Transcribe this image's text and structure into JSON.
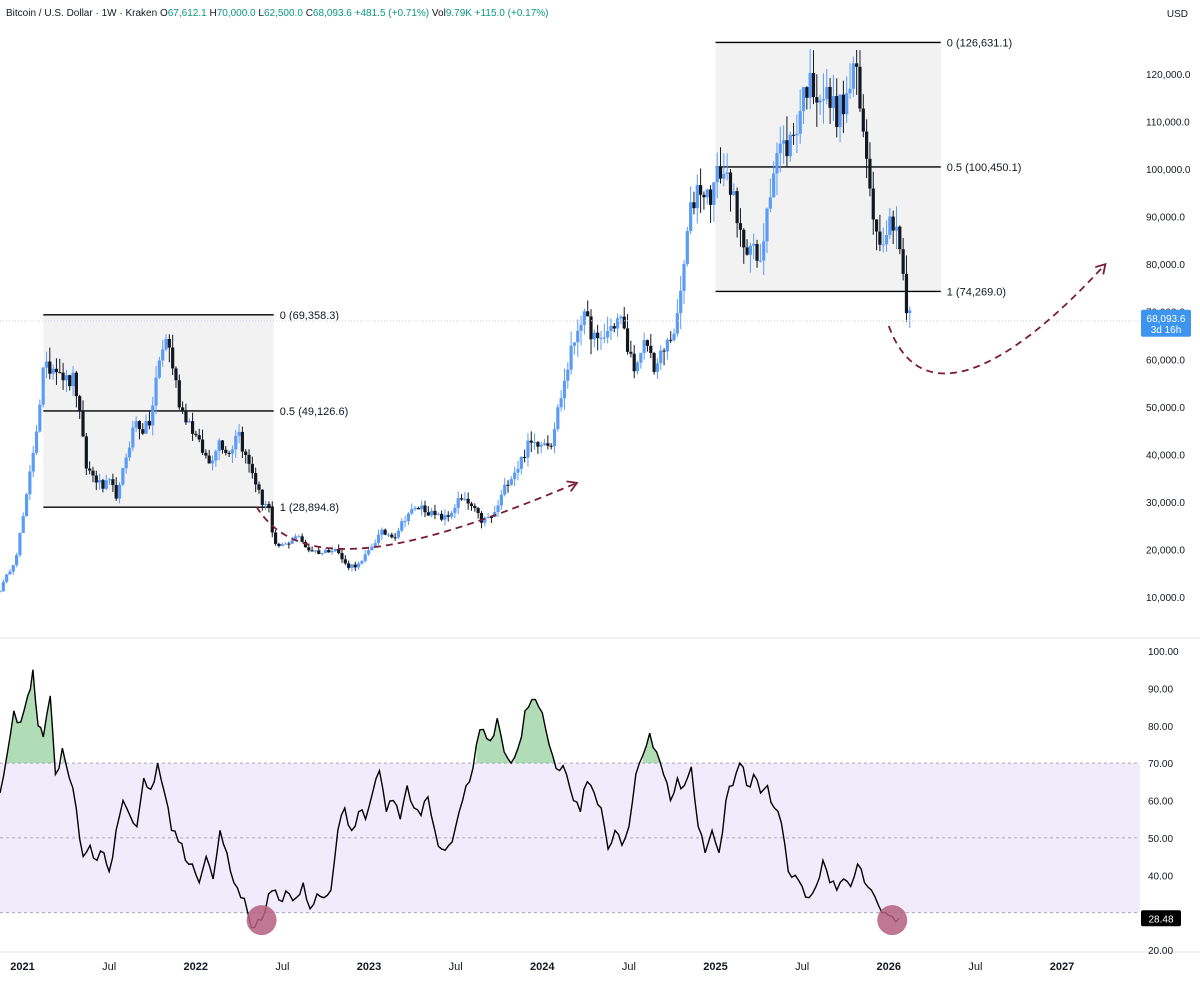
{
  "header": {
    "symbol": "Bitcoin / U.S. Dollar",
    "interval": "1W",
    "exchange": "Kraken",
    "open_label": "O",
    "open": "67,612.1",
    "high_label": "H",
    "high": "70,000.0",
    "low_label": "L",
    "low": "62,500.0",
    "close_label": "C",
    "close": "68,093.6",
    "change": "+481.5 (+0.71%)",
    "volume_label": "Vol",
    "volume": "9.79K",
    "volume_change": "+115.0 (+0.17%)",
    "currency": "USD"
  },
  "price_badge": {
    "price": "68,093.6",
    "countdown": "3d 16h"
  },
  "rsi_badge": "28.48",
  "colors": {
    "up": "#5b9cf6",
    "down": "#131722",
    "fib_box": "#f2f2f2",
    "arrow": "#7b1c37",
    "rsi_band": "#f1ecfb",
    "rsi_line": "#000000",
    "rsi_over": "#6fc179",
    "rsi_marker": "#b5607f",
    "badge": "#3d95ef"
  },
  "chart_data": [
    {
      "type": "candlestick",
      "title": "",
      "y_axis_ticks": [
        "10,000.0",
        "20,000.0",
        "30,000.0",
        "40,000.0",
        "50,000.0",
        "60,000.0",
        "70,000.0",
        "80,000.0",
        "90,000.0",
        "100,000.0",
        "110,000.0",
        "120,000.0"
      ],
      "ylim": [
        0,
        130000
      ],
      "x_axis_ticks": [
        "2021",
        "Jul",
        "2022",
        "Jul",
        "2023",
        "Jul",
        "2024",
        "Jul",
        "2025",
        "Jul",
        "2026",
        "Jul",
        "2027"
      ],
      "xlim": [
        2020.87,
        2027.45
      ],
      "anchors": [
        [
          2020.87,
          11500
        ],
        [
          2020.96,
          18200
        ],
        [
          2021.02,
          30000
        ],
        [
          2021.09,
          48000
        ],
        [
          2021.12,
          57500
        ],
        [
          2021.2,
          59000
        ],
        [
          2021.26,
          55000
        ],
        [
          2021.3,
          56000
        ],
        [
          2021.37,
          37000
        ],
        [
          2021.42,
          35000
        ],
        [
          2021.46,
          33000
        ],
        [
          2021.5,
          34000
        ],
        [
          2021.55,
          31000
        ],
        [
          2021.6,
          40000
        ],
        [
          2021.65,
          47000
        ],
        [
          2021.7,
          45000
        ],
        [
          2021.74,
          47000
        ],
        [
          2021.78,
          58000
        ],
        [
          2021.83,
          65000
        ],
        [
          2021.86,
          60000
        ],
        [
          2021.91,
          50000
        ],
        [
          2021.96,
          47000
        ],
        [
          2022.02,
          42000
        ],
        [
          2022.08,
          38000
        ],
        [
          2022.13,
          43000
        ],
        [
          2022.2,
          40000
        ],
        [
          2022.24,
          46000
        ],
        [
          2022.28,
          40000
        ],
        [
          2022.33,
          36000
        ],
        [
          2022.38,
          30000
        ],
        [
          2022.42,
          29500
        ],
        [
          2022.45,
          20500
        ],
        [
          2022.52,
          21000
        ],
        [
          2022.58,
          23000
        ],
        [
          2022.65,
          20000
        ],
        [
          2022.73,
          19300
        ],
        [
          2022.8,
          20500
        ],
        [
          2022.87,
          16500
        ],
        [
          2022.95,
          16800
        ],
        [
          2023.02,
          21000
        ],
        [
          2023.07,
          23500
        ],
        [
          2023.15,
          23000
        ],
        [
          2023.22,
          27500
        ],
        [
          2023.3,
          29000
        ],
        [
          2023.38,
          27000
        ],
        [
          2023.45,
          26500
        ],
        [
          2023.52,
          30500
        ],
        [
          2023.58,
          29500
        ],
        [
          2023.65,
          26000
        ],
        [
          2023.72,
          27000
        ],
        [
          2023.8,
          34500
        ],
        [
          2023.86,
          37500
        ],
        [
          2023.92,
          42000
        ],
        [
          2024.0,
          43000
        ],
        [
          2024.05,
          42500
        ],
        [
          2024.1,
          51000
        ],
        [
          2024.17,
          62000
        ],
        [
          2024.22,
          69000
        ],
        [
          2024.27,
          67000
        ],
        [
          2024.32,
          63000
        ],
        [
          2024.38,
          66000
        ],
        [
          2024.45,
          69000
        ],
        [
          2024.5,
          61000
        ],
        [
          2024.55,
          58000
        ],
        [
          2024.6,
          64000
        ],
        [
          2024.65,
          58000
        ],
        [
          2024.72,
          63000
        ],
        [
          2024.78,
          68000
        ],
        [
          2024.85,
          90000
        ],
        [
          2024.9,
          97000
        ],
        [
          2024.96,
          94000
        ],
        [
          2025.03,
          100000
        ],
        [
          2025.09,
          97000
        ],
        [
          2025.13,
          86000
        ],
        [
          2025.2,
          84000
        ],
        [
          2025.26,
          79000
        ],
        [
          2025.3,
          94000
        ],
        [
          2025.36,
          104000
        ],
        [
          2025.42,
          105000
        ],
        [
          2025.46,
          108000
        ],
        [
          2025.52,
          118000
        ],
        [
          2025.58,
          117000
        ],
        [
          2025.64,
          115000
        ],
        [
          2025.7,
          112000
        ],
        [
          2025.76,
          114000
        ],
        [
          2025.8,
          123000
        ],
        [
          2025.84,
          110000
        ],
        [
          2025.88,
          101000
        ],
        [
          2025.93,
          86000
        ],
        [
          2025.98,
          87000
        ],
        [
          2026.02,
          90000
        ],
        [
          2026.05,
          88000
        ],
        [
          2026.08,
          78000
        ],
        [
          2026.1,
          70000
        ],
        [
          2026.12,
          69000
        ],
        [
          2026.14,
          68000
        ]
      ],
      "fib_levels": [
        {
          "from": 2021.12,
          "to": 2022.45,
          "labels": [
            {
              "ratio": "0",
              "price": 69358.3,
              "text": "0 (69,358.3)"
            },
            {
              "ratio": "0.5",
              "price": 49126.6,
              "text": "0.5 (49,126.6)"
            },
            {
              "ratio": "1",
              "price": 28894.8,
              "text": "1 (28,894.8)"
            }
          ]
        },
        {
          "from": 2025.0,
          "to": 2026.3,
          "labels": [
            {
              "ratio": "0",
              "price": 126631.1,
              "text": "0 (126,631.1)"
            },
            {
              "ratio": "0.5",
              "price": 100450.1,
              "text": "0.5 (100,450.1)"
            },
            {
              "ratio": "1",
              "price": 74269.0,
              "text": "1 (74,269.0)"
            }
          ]
        }
      ],
      "projection_arrows": [
        [
          [
            2022.35,
            29000
          ],
          [
            2022.62,
            13000
          ],
          [
            2023.35,
            21000
          ],
          [
            2024.2,
            34000
          ]
        ],
        [
          [
            2026.0,
            67000
          ],
          [
            2026.2,
            47000
          ],
          [
            2026.75,
            60000
          ],
          [
            2027.25,
            80000
          ]
        ]
      ]
    },
    {
      "type": "line",
      "title": "",
      "y_axis_ticks": [
        "20.00",
        "30.00",
        "40.00",
        "50.00",
        "60.00",
        "70.00",
        "80.00",
        "90.00",
        "100.00"
      ],
      "ylim": [
        20,
        100
      ],
      "band": [
        30,
        70
      ],
      "midline": 50,
      "rsi": [
        [
          2020.87,
          62
        ],
        [
          2020.91,
          72
        ],
        [
          2020.95,
          84
        ],
        [
          2020.99,
          81
        ],
        [
          2021.03,
          88
        ],
        [
          2021.06,
          95
        ],
        [
          2021.09,
          80
        ],
        [
          2021.12,
          77
        ],
        [
          2021.16,
          88
        ],
        [
          2021.19,
          67
        ],
        [
          2021.23,
          74
        ],
        [
          2021.27,
          66
        ],
        [
          2021.31,
          58
        ],
        [
          2021.35,
          45
        ],
        [
          2021.39,
          48
        ],
        [
          2021.43,
          44
        ],
        [
          2021.47,
          46
        ],
        [
          2021.5,
          41
        ],
        [
          2021.54,
          52
        ],
        [
          2021.58,
          60
        ],
        [
          2021.62,
          56
        ],
        [
          2021.66,
          53
        ],
        [
          2021.7,
          66
        ],
        [
          2021.74,
          63
        ],
        [
          2021.78,
          70
        ],
        [
          2021.82,
          62
        ],
        [
          2021.86,
          52
        ],
        [
          2021.9,
          49
        ],
        [
          2021.94,
          44
        ],
        [
          2021.98,
          43
        ],
        [
          2022.02,
          38
        ],
        [
          2022.06,
          45
        ],
        [
          2022.1,
          39
        ],
        [
          2022.14,
          52
        ],
        [
          2022.18,
          46
        ],
        [
          2022.22,
          38
        ],
        [
          2022.26,
          34
        ],
        [
          2022.3,
          30
        ],
        [
          2022.34,
          26
        ],
        [
          2022.38,
          28
        ],
        [
          2022.42,
          35
        ],
        [
          2022.46,
          36
        ],
        [
          2022.5,
          33
        ],
        [
          2022.54,
          35
        ],
        [
          2022.58,
          34
        ],
        [
          2022.62,
          38
        ],
        [
          2022.66,
          31
        ],
        [
          2022.7,
          35
        ],
        [
          2022.74,
          34
        ],
        [
          2022.78,
          36
        ],
        [
          2022.82,
          52
        ],
        [
          2022.86,
          58
        ],
        [
          2022.9,
          52
        ],
        [
          2022.94,
          57
        ],
        [
          2022.98,
          55
        ],
        [
          2023.02,
          62
        ],
        [
          2023.06,
          68
        ],
        [
          2023.1,
          57
        ],
        [
          2023.14,
          60
        ],
        [
          2023.18,
          55
        ],
        [
          2023.22,
          64
        ],
        [
          2023.26,
          58
        ],
        [
          2023.3,
          56
        ],
        [
          2023.34,
          61
        ],
        [
          2023.38,
          52
        ],
        [
          2023.42,
          47
        ],
        [
          2023.46,
          48
        ],
        [
          2023.5,
          53
        ],
        [
          2023.54,
          60
        ],
        [
          2023.58,
          65
        ],
        [
          2023.62,
          75
        ],
        [
          2023.66,
          79
        ],
        [
          2023.7,
          76
        ],
        [
          2023.74,
          82
        ],
        [
          2023.78,
          73
        ],
        [
          2023.82,
          70
        ],
        [
          2023.86,
          74
        ],
        [
          2023.9,
          84
        ],
        [
          2023.94,
          87
        ],
        [
          2023.98,
          85
        ],
        [
          2024.02,
          79
        ],
        [
          2024.06,
          72
        ],
        [
          2024.1,
          68
        ],
        [
          2024.14,
          67
        ],
        [
          2024.18,
          60
        ],
        [
          2024.22,
          57
        ],
        [
          2024.26,
          65
        ],
        [
          2024.3,
          62
        ],
        [
          2024.34,
          58
        ],
        [
          2024.38,
          47
        ],
        [
          2024.42,
          52
        ],
        [
          2024.46,
          48
        ],
        [
          2024.5,
          53
        ],
        [
          2024.54,
          67
        ],
        [
          2024.58,
          72
        ],
        [
          2024.62,
          78
        ],
        [
          2024.66,
          73
        ],
        [
          2024.7,
          67
        ],
        [
          2024.74,
          60
        ],
        [
          2024.78,
          66
        ],
        [
          2024.82,
          64
        ],
        [
          2024.86,
          69
        ],
        [
          2024.9,
          53
        ],
        [
          2024.94,
          46
        ],
        [
          2024.98,
          52
        ],
        [
          2025.02,
          46
        ],
        [
          2025.06,
          60
        ],
        [
          2025.1,
          64
        ],
        [
          2025.14,
          70
        ],
        [
          2025.18,
          64
        ],
        [
          2025.22,
          67
        ],
        [
          2025.26,
          62
        ],
        [
          2025.3,
          64
        ],
        [
          2025.34,
          58
        ],
        [
          2025.38,
          54
        ],
        [
          2025.42,
          41
        ],
        [
          2025.46,
          40
        ],
        [
          2025.5,
          37
        ],
        [
          2025.54,
          34
        ],
        [
          2025.58,
          37
        ],
        [
          2025.62,
          44
        ],
        [
          2025.66,
          38
        ],
        [
          2025.7,
          36
        ],
        [
          2025.74,
          39
        ],
        [
          2025.78,
          37
        ],
        [
          2025.82,
          43
        ],
        [
          2025.86,
          38
        ],
        [
          2025.9,
          36
        ],
        [
          2025.94,
          32
        ],
        [
          2025.98,
          30
        ],
        [
          2026.02,
          29
        ],
        [
          2026.06,
          28.48
        ]
      ],
      "low_markers": [
        [
          2022.38,
          28
        ],
        [
          2026.02,
          28
        ]
      ]
    }
  ]
}
